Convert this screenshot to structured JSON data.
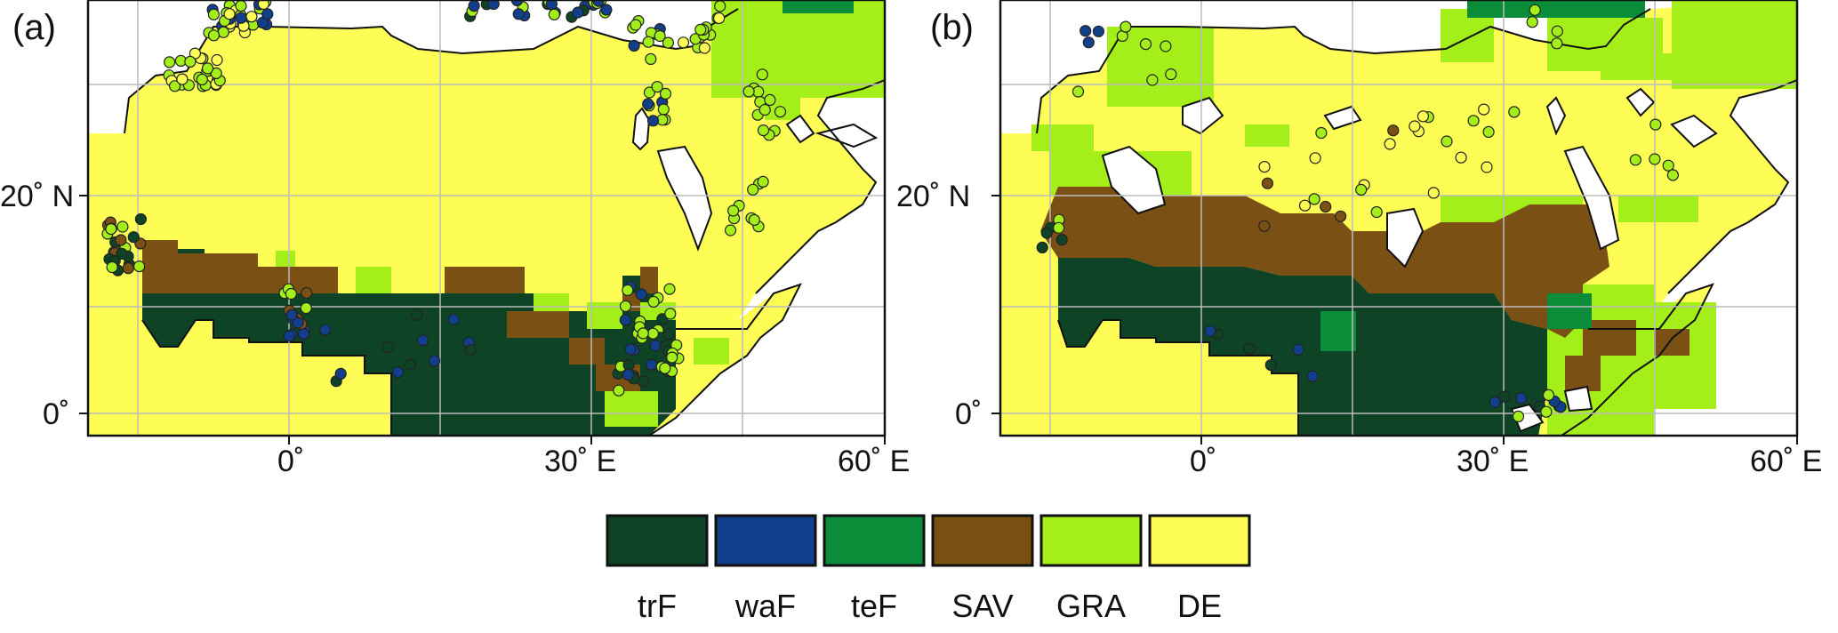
{
  "panels": [
    {
      "id": "a",
      "label": "(a)"
    },
    {
      "id": "b",
      "label": "(b)"
    }
  ],
  "axes": {
    "lon_ticks": [
      "0˚",
      "30˚ E",
      "60˚ E"
    ],
    "lat_ticks": [
      "20˚ N",
      "0˚"
    ]
  },
  "legend": [
    {
      "code": "trF",
      "label": "trF",
      "color": "#0f4326"
    },
    {
      "code": "waF",
      "label": "waF",
      "color": "#123f8c"
    },
    {
      "code": "teF",
      "label": "teF",
      "color": "#0b8c38"
    },
    {
      "code": "SAV",
      "label": "SAV",
      "color": "#7a5014"
    },
    {
      "code": "GRA",
      "label": "GRA",
      "color": "#a4ef19"
    },
    {
      "code": "DE",
      "label": "DE",
      "color": "#fdfd55"
    }
  ],
  "map_region": {
    "lon_range": [
      -20,
      60
    ],
    "lat_range": [
      -2,
      42
    ]
  },
  "colors": {
    "coastline": "#111111",
    "grid": "#bbbbbb",
    "ocean": "#ffffff"
  }
}
